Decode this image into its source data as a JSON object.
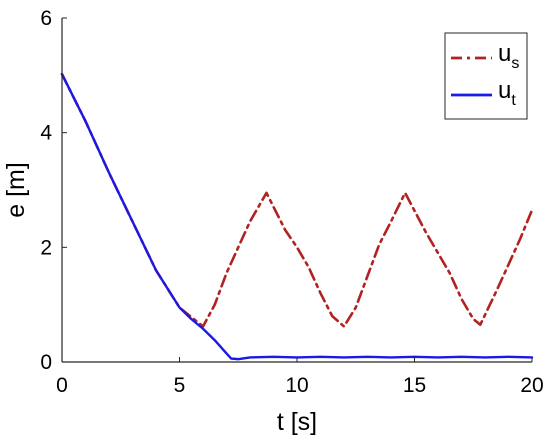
{
  "chart_data": {
    "type": "line",
    "xlabel": "t [s]",
    "ylabel": "e [m]",
    "xlim": [
      0,
      20
    ],
    "ylim": [
      0,
      6
    ],
    "xticks": [
      0,
      5,
      10,
      15,
      20
    ],
    "yticks": [
      0,
      2,
      4,
      6
    ],
    "grid": false,
    "legend_position": "top-right",
    "series": [
      {
        "name": "u",
        "name_sub": "s",
        "color": "#b22222",
        "style": "dash-dot",
        "x": [
          0,
          1,
          2,
          3,
          4,
          5,
          6,
          6.5,
          7,
          7.5,
          8,
          8.7,
          9.5,
          10,
          10.5,
          11,
          11.5,
          12,
          12.5,
          13,
          13.5,
          14,
          14.6,
          15.5,
          16,
          16.5,
          17,
          17.5,
          17.8,
          18.5,
          19,
          19.5,
          20
        ],
        "y": [
          5.02,
          4.2,
          3.3,
          2.45,
          1.6,
          0.95,
          0.62,
          1.0,
          1.55,
          2.0,
          2.45,
          2.95,
          2.3,
          2.0,
          1.65,
          1.2,
          0.8,
          0.62,
          0.95,
          1.5,
          2.05,
          2.45,
          2.95,
          2.25,
          1.9,
          1.55,
          1.1,
          0.75,
          0.65,
          1.25,
          1.7,
          2.15,
          2.65
        ]
      },
      {
        "name": "u",
        "name_sub": "t",
        "color": "#1a1ae6",
        "style": "solid",
        "x": [
          0,
          1,
          2,
          3,
          4,
          5,
          5.5,
          6,
          6.5,
          7,
          7.2,
          7.5,
          8,
          9,
          10,
          11,
          12,
          13,
          14,
          15,
          16,
          17,
          18,
          19,
          20
        ],
        "y": [
          5.02,
          4.2,
          3.3,
          2.45,
          1.6,
          0.95,
          0.75,
          0.58,
          0.38,
          0.15,
          0.06,
          0.05,
          0.08,
          0.09,
          0.08,
          0.09,
          0.08,
          0.09,
          0.08,
          0.09,
          0.08,
          0.09,
          0.08,
          0.09,
          0.08
        ]
      }
    ]
  }
}
